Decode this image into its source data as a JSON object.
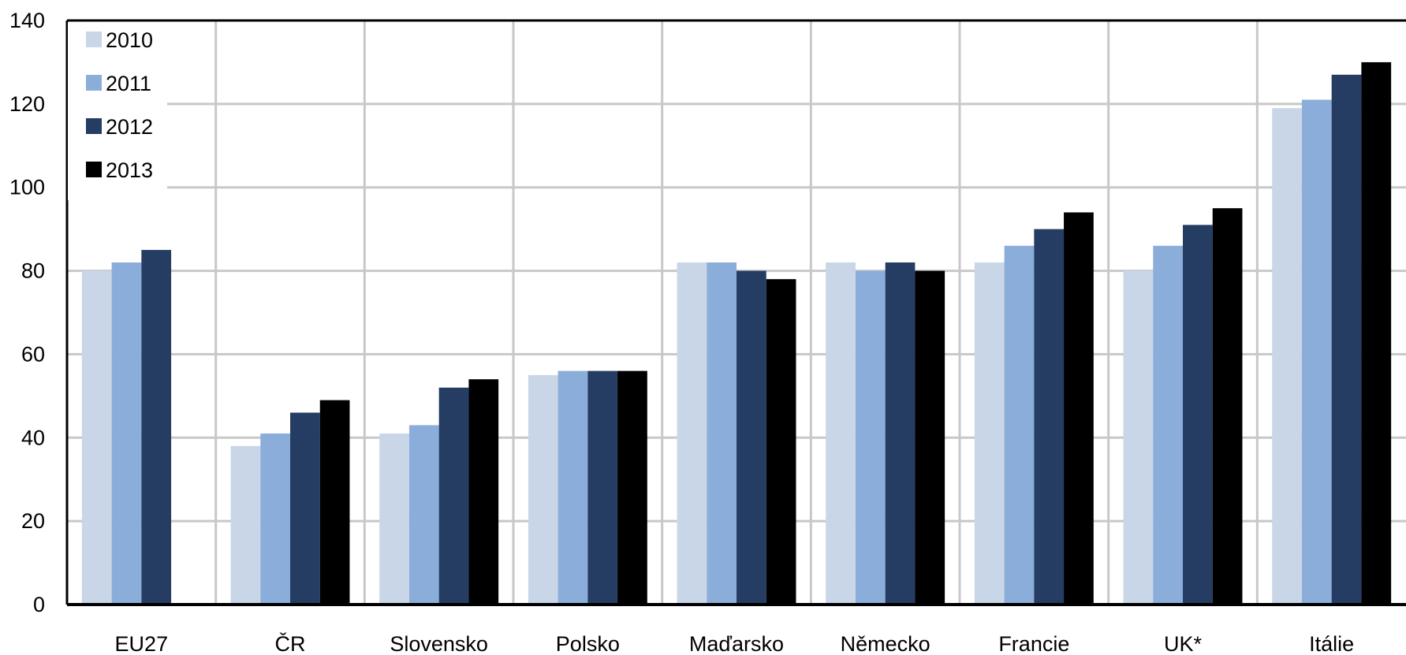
{
  "chart_data": {
    "type": "bar",
    "categories": [
      "EU27",
      "ČR",
      "Slovensko",
      "Polsko",
      "Maďarsko",
      "Německo",
      "Francie",
      "UK*",
      "Itálie"
    ],
    "series": [
      {
        "name": "2010",
        "color": "#c9d6e8",
        "values": [
          80,
          38,
          41,
          55,
          82,
          82,
          82,
          80,
          119
        ]
      },
      {
        "name": "2011",
        "color": "#8badda",
        "values": [
          82,
          41,
          43,
          56,
          82,
          80,
          86,
          86,
          121
        ]
      },
      {
        "name": "2012",
        "color": "#253d63",
        "values": [
          85,
          46,
          52,
          56,
          80,
          82,
          90,
          91,
          127
        ]
      },
      {
        "name": "2013",
        "color": "#000000",
        "values": [
          null,
          49,
          54,
          56,
          78,
          80,
          94,
          95,
          130
        ]
      }
    ],
    "ylim": [
      0,
      140
    ],
    "yticks": [
      0,
      20,
      40,
      60,
      80,
      100,
      120,
      140
    ],
    "grid": true,
    "legend": "top-left",
    "title": "",
    "xlabel": "",
    "ylabel": ""
  }
}
